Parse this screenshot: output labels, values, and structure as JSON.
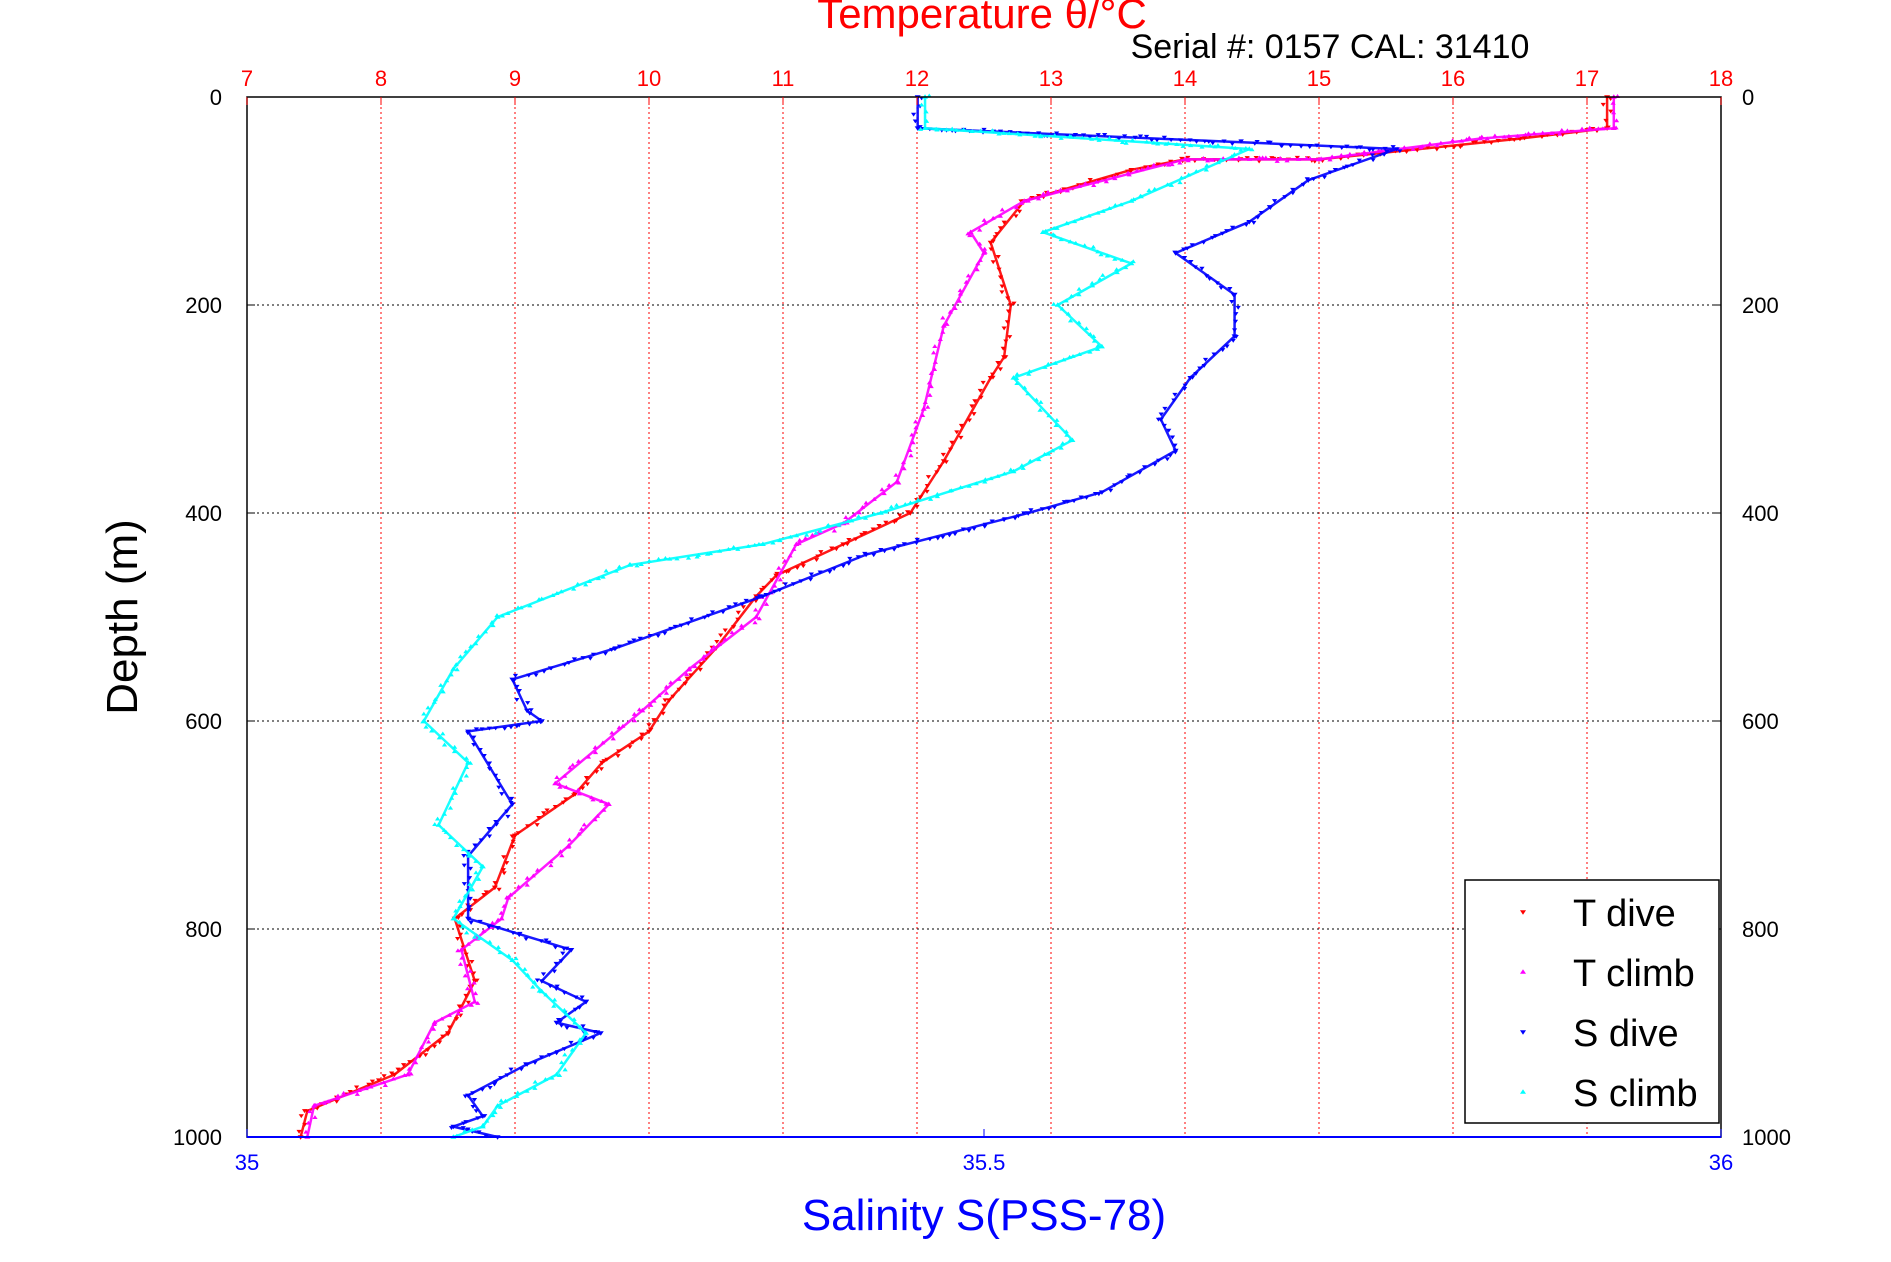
{
  "chart_data": {
    "type": "scatter",
    "title": "Temperature θ/°C",
    "subtitle": "Serial #: 0157  CAL: 31410",
    "xlabel": "Salinity S(PSS-78)",
    "ylabel": "Depth (m)",
    "ylim": [
      0,
      1000
    ],
    "x_top_range": [
      7,
      18
    ],
    "x_bottom_range": [
      35,
      36
    ],
    "y_ticks": [
      0,
      200,
      400,
      600,
      800,
      1000
    ],
    "y_tick_labels": [
      "0",
      "200",
      "400",
      "600",
      "800",
      "1000"
    ],
    "x_top_ticks": [
      7,
      8,
      9,
      10,
      11,
      12,
      13,
      14,
      15,
      16,
      17,
      18
    ],
    "x_top_tick_labels": [
      "7",
      "8",
      "9",
      "10",
      "11",
      "12",
      "13",
      "14",
      "15",
      "16",
      "17",
      "18"
    ],
    "x_bottom_ticks": [
      35,
      35.5,
      36
    ],
    "x_bottom_tick_labels": [
      "35",
      "35.5",
      "36"
    ],
    "grid": true,
    "legend_position": "bottom-right",
    "colors": {
      "temp_axis": "#ff0000",
      "salinity_axis": "#0000ff",
      "t_dive": "#ff0000",
      "t_climb": "#ff00ff",
      "s_dive": "#0000ff",
      "s_climb": "#00ffff"
    },
    "series": [
      {
        "name": "T dive",
        "axis": "top",
        "x": [
          17.15,
          17.15,
          16.5,
          15.0,
          14.0,
          13.6,
          12.8,
          12.55,
          12.7,
          12.65,
          12.55,
          12.2,
          11.95,
          11.45,
          10.95,
          10.8,
          10.5,
          10.15,
          10.0,
          9.65,
          9.45,
          9.0,
          8.85,
          8.55,
          8.7,
          8.5,
          8.1,
          7.45,
          7.4
        ],
        "y": [
          0,
          30,
          40,
          60,
          60,
          70,
          100,
          140,
          200,
          250,
          270,
          350,
          400,
          430,
          460,
          480,
          530,
          580,
          610,
          640,
          670,
          710,
          760,
          790,
          850,
          900,
          940,
          975,
          1000
        ]
      },
      {
        "name": "T climb",
        "axis": "top",
        "x": [
          17.2,
          17.2,
          16.2,
          15.0,
          14.0,
          12.8,
          12.4,
          12.5,
          12.2,
          12.05,
          11.85,
          11.45,
          11.1,
          10.8,
          10.3,
          9.95,
          9.3,
          9.7,
          9.4,
          8.95,
          8.9,
          8.6,
          8.7,
          8.4,
          8.2,
          7.5,
          7.45
        ],
        "y": [
          0,
          30,
          40,
          60,
          60,
          100,
          130,
          150,
          220,
          300,
          370,
          410,
          430,
          500,
          550,
          590,
          660,
          680,
          720,
          770,
          790,
          820,
          870,
          890,
          940,
          970,
          1000
        ]
      },
      {
        "name": "S dive",
        "axis": "bottom",
        "x": [
          35.455,
          35.455,
          35.78,
          35.72,
          35.68,
          35.63,
          35.67,
          35.67,
          35.64,
          35.62,
          35.63,
          35.58,
          35.53,
          35.42,
          35.35,
          35.25,
          35.18,
          35.19,
          35.2,
          35.15,
          35.18,
          35.15,
          35.15,
          35.22,
          35.2,
          35.23,
          35.21,
          35.24,
          35.19,
          35.15,
          35.16,
          35.14,
          35.17
        ],
        "y": [
          0,
          30,
          50,
          80,
          120,
          150,
          190,
          230,
          270,
          310,
          340,
          380,
          400,
          440,
          480,
          530,
          560,
          590,
          600,
          610,
          680,
          730,
          790,
          820,
          850,
          870,
          890,
          900,
          930,
          960,
          980,
          990,
          1000
        ]
      },
      {
        "name": "S climb",
        "axis": "bottom",
        "x": [
          35.46,
          35.46,
          35.68,
          35.6,
          35.54,
          35.6,
          35.55,
          35.58,
          35.52,
          35.56,
          35.52,
          35.43,
          35.35,
          35.26,
          35.17,
          35.14,
          35.12,
          35.15,
          35.13,
          35.16,
          35.14,
          35.18,
          35.2,
          35.23,
          35.21,
          35.17,
          35.16,
          35.14
        ],
        "y": [
          0,
          30,
          50,
          100,
          130,
          160,
          200,
          240,
          270,
          330,
          360,
          400,
          430,
          450,
          500,
          550,
          600,
          640,
          700,
          740,
          790,
          830,
          860,
          900,
          940,
          970,
          990,
          1000
        ]
      }
    ]
  }
}
